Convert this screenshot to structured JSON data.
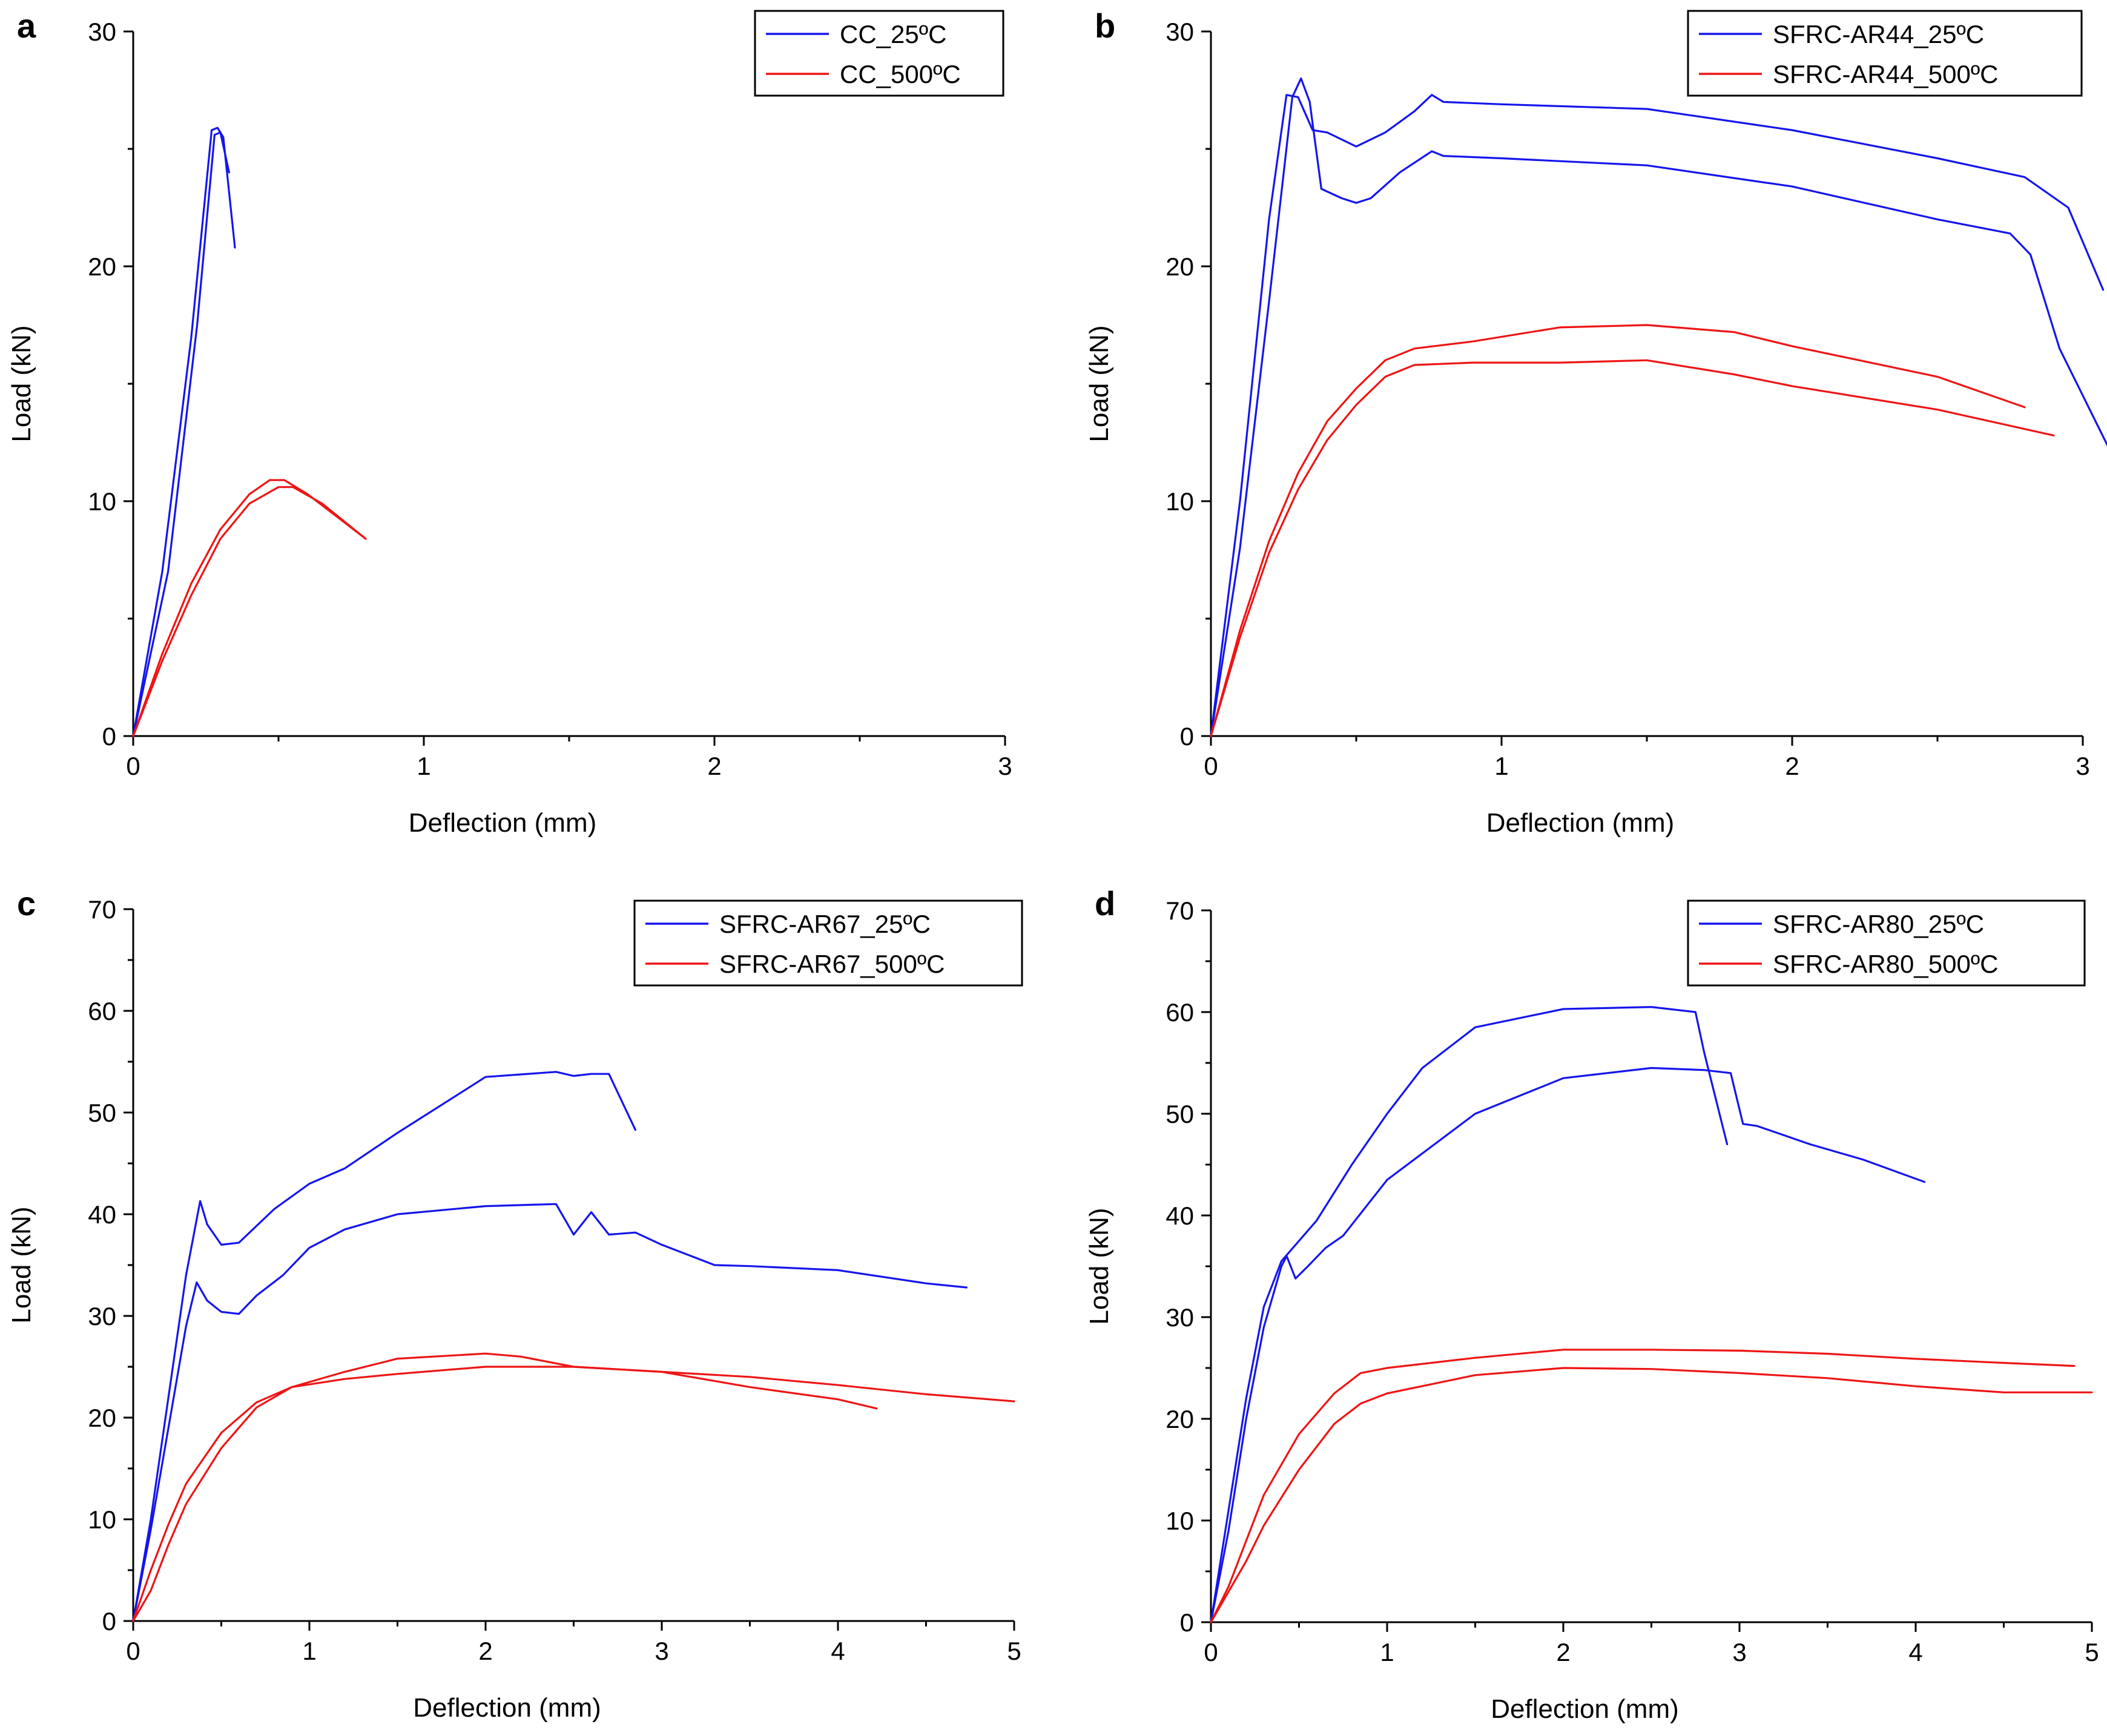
{
  "colors": {
    "blue": "#1515ee",
    "red": "#ee1515",
    "axis": "#000000"
  },
  "chart_data": [
    {
      "panel": "a",
      "type": "line",
      "xlabel": "Deflection (mm)",
      "ylabel": "Load (kN)",
      "xlim": [
        0,
        3
      ],
      "ylim": [
        0,
        30
      ],
      "xticks": [
        0,
        1,
        2,
        3
      ],
      "yticks": [
        0,
        10,
        20,
        30
      ],
      "legend": [
        {
          "label": "CC_25ºC",
          "color": "#1515ee"
        },
        {
          "label": "CC_500ºC",
          "color": "#ee1515"
        }
      ],
      "series": [
        {
          "name": "CC_25ºC specimen 1",
          "legend_index": 0,
          "x": [
            0,
            0.1,
            0.2,
            0.27,
            0.29,
            0.31,
            0.35
          ],
          "y": [
            0,
            7,
            17,
            25.8,
            25.9,
            25.5,
            20.8
          ]
        },
        {
          "name": "CC_25ºC specimen 2",
          "legend_index": 0,
          "x": [
            0,
            0.12,
            0.22,
            0.28,
            0.3,
            0.33
          ],
          "y": [
            0,
            7,
            17.5,
            25.6,
            25.7,
            24
          ]
        },
        {
          "name": "CC_500ºC specimen 1",
          "legend_index": 1,
          "x": [
            0,
            0.1,
            0.2,
            0.3,
            0.4,
            0.47,
            0.52,
            0.6,
            0.8
          ],
          "y": [
            0,
            3.5,
            6.5,
            8.8,
            10.3,
            10.9,
            10.9,
            10.3,
            8.4
          ]
        },
        {
          "name": "CC_500ºC specimen 2",
          "legend_index": 1,
          "x": [
            0,
            0.1,
            0.2,
            0.3,
            0.4,
            0.5,
            0.55,
            0.65,
            0.8
          ],
          "y": [
            0,
            3.2,
            6,
            8.4,
            9.9,
            10.6,
            10.6,
            9.9,
            8.4
          ]
        }
      ]
    },
    {
      "panel": "b",
      "type": "line",
      "xlabel": "Deflection (mm)",
      "ylabel": "Load (kN)",
      "xlim": [
        0,
        3
      ],
      "ylim": [
        0,
        30
      ],
      "xticks": [
        0,
        1,
        2,
        3
      ],
      "yticks": [
        0,
        10,
        20,
        30
      ],
      "legend": [
        {
          "label": "SFRC-AR44_25ºC",
          "color": "#1515ee"
        },
        {
          "label": "SFRC-AR44_500ºC",
          "color": "#ee1515"
        }
      ],
      "series": [
        {
          "name": "SFRC-AR44_25ºC specimen 1",
          "legend_index": 0,
          "x": [
            0,
            0.1,
            0.2,
            0.26,
            0.3,
            0.35,
            0.4,
            0.5,
            0.6,
            0.7,
            0.76,
            0.8,
            1.0,
            1.5,
            2.0,
            2.5,
            2.8,
            2.95,
            3.07
          ],
          "y": [
            0,
            10,
            22,
            27.3,
            27.2,
            25.8,
            25.7,
            25.1,
            25.7,
            26.6,
            27.3,
            27.0,
            26.9,
            26.7,
            25.8,
            24.6,
            23.8,
            22.5,
            19
          ]
        },
        {
          "name": "SFRC-AR44_25ºC specimen 2",
          "legend_index": 0,
          "x": [
            0,
            0.1,
            0.2,
            0.28,
            0.31,
            0.34,
            0.38,
            0.45,
            0.5,
            0.55,
            0.65,
            0.76,
            0.8,
            1.0,
            1.5,
            2.0,
            2.5,
            2.75,
            2.82,
            2.92,
            3.1
          ],
          "y": [
            0,
            8,
            18.5,
            27.2,
            28,
            27,
            23.3,
            22.9,
            22.7,
            22.9,
            24,
            24.9,
            24.7,
            24.6,
            24.3,
            23.4,
            22,
            21.4,
            20.5,
            16.5,
            12
          ]
        },
        {
          "name": "SFRC-AR44_500ºC specimen 1",
          "legend_index": 1,
          "x": [
            0,
            0.1,
            0.2,
            0.3,
            0.4,
            0.5,
            0.6,
            0.7,
            0.9,
            1.2,
            1.5,
            1.8,
            2.0,
            2.5,
            2.8
          ],
          "y": [
            0,
            4.5,
            8.3,
            11.2,
            13.4,
            14.8,
            16,
            16.5,
            16.8,
            17.4,
            17.5,
            17.2,
            16.6,
            15.3,
            14
          ]
        },
        {
          "name": "SFRC-AR44_500ºC specimen 2",
          "legend_index": 1,
          "x": [
            0,
            0.1,
            0.2,
            0.3,
            0.4,
            0.5,
            0.6,
            0.7,
            0.9,
            1.2,
            1.5,
            1.8,
            2.0,
            2.5,
            2.9
          ],
          "y": [
            0,
            4.2,
            7.8,
            10.5,
            12.6,
            14.1,
            15.3,
            15.8,
            15.9,
            15.9,
            16,
            15.4,
            14.9,
            13.9,
            12.8
          ]
        }
      ]
    },
    {
      "panel": "c",
      "type": "line",
      "xlabel": "Deflection (mm)",
      "ylabel": "Load (kN)",
      "xlim": [
        0,
        5
      ],
      "ylim": [
        0,
        70
      ],
      "xticks": [
        0,
        1,
        2,
        3,
        4,
        5
      ],
      "yticks": [
        0,
        10,
        20,
        30,
        40,
        50,
        60,
        70
      ],
      "legend": [
        {
          "label": "SFRC-AR67_25ºC",
          "color": "#1515ee"
        },
        {
          "label": "SFRC-AR67_500ºC",
          "color": "#ee1515"
        }
      ],
      "series": [
        {
          "name": "SFRC-AR67_25ºC specimen 1",
          "legend_index": 0,
          "x": [
            0,
            0.1,
            0.2,
            0.3,
            0.38,
            0.42,
            0.5,
            0.6,
            0.8,
            1.0,
            1.2,
            1.5,
            2.0,
            2.4,
            2.5,
            2.6,
            2.7,
            2.85
          ],
          "y": [
            0,
            10,
            22,
            34,
            41.3,
            39,
            37,
            37.2,
            40.5,
            43,
            44.5,
            48,
            53.5,
            54,
            53.6,
            53.8,
            53.8,
            48.3
          ]
        },
        {
          "name": "SFRC-AR67_25ºC specimen 2",
          "legend_index": 0,
          "x": [
            0,
            0.1,
            0.2,
            0.3,
            0.36,
            0.42,
            0.5,
            0.6,
            0.7,
            0.85,
            1.0,
            1.2,
            1.5,
            2.0,
            2.4,
            2.5,
            2.6,
            2.7,
            2.85,
            3.0,
            3.3,
            3.5,
            4.0,
            4.5,
            4.73
          ],
          "y": [
            0,
            9,
            19,
            29,
            33.3,
            31.5,
            30.4,
            30.2,
            32,
            34,
            36.7,
            38.5,
            40,
            40.8,
            41,
            38,
            40.2,
            38,
            38.2,
            37,
            35,
            34.9,
            34.5,
            33.2,
            32.8
          ]
        },
        {
          "name": "SFRC-AR67_500ºC specimen 1",
          "legend_index": 1,
          "x": [
            0,
            0.1,
            0.2,
            0.3,
            0.5,
            0.7,
            0.9,
            1.2,
            1.5,
            2.0,
            2.2,
            2.5,
            3.0,
            3.5,
            4.0,
            4.22
          ],
          "y": [
            0,
            3,
            7.5,
            11.5,
            17,
            21,
            23,
            24.5,
            25.8,
            26.3,
            26,
            25,
            24.5,
            23,
            21.8,
            20.9
          ]
        },
        {
          "name": "SFRC-AR67_500ºC specimen 2",
          "legend_index": 1,
          "x": [
            0,
            0.1,
            0.2,
            0.3,
            0.5,
            0.7,
            0.9,
            1.2,
            1.5,
            2.0,
            2.5,
            3.0,
            3.5,
            4.0,
            4.5,
            5.0
          ],
          "y": [
            0,
            5,
            9.5,
            13.5,
            18.5,
            21.5,
            23,
            23.8,
            24.3,
            25,
            25,
            24.5,
            24,
            23.2,
            22.3,
            21.6
          ]
        }
      ]
    },
    {
      "panel": "d",
      "type": "line",
      "xlabel": "Deflection (mm)",
      "ylabel": "Load (kN)",
      "xlim": [
        0,
        5
      ],
      "ylim": [
        0,
        70
      ],
      "xticks": [
        0,
        1,
        2,
        3,
        4,
        5
      ],
      "yticks": [
        0,
        10,
        20,
        30,
        40,
        50,
        60,
        70
      ],
      "legend": [
        {
          "label": "SFRC-AR80_25ºC",
          "color": "#1515ee"
        },
        {
          "label": "SFRC-AR80_500ºC",
          "color": "#ee1515"
        }
      ],
      "series": [
        {
          "name": "SFRC-AR80_25ºC specimen 1",
          "legend_index": 0,
          "x": [
            0,
            0.1,
            0.2,
            0.3,
            0.4,
            0.5,
            0.6,
            0.8,
            1.0,
            1.2,
            1.5,
            2.0,
            2.5,
            2.75,
            2.8,
            2.93
          ],
          "y": [
            0,
            11,
            22,
            31,
            35.5,
            37.5,
            39.5,
            45,
            50,
            54.5,
            58.5,
            60.3,
            60.5,
            60,
            56,
            47
          ]
        },
        {
          "name": "SFRC-AR80_25ºC specimen 2",
          "legend_index": 0,
          "x": [
            0,
            0.1,
            0.2,
            0.3,
            0.4,
            0.43,
            0.48,
            0.55,
            0.65,
            0.75,
            1.0,
            1.5,
            2.0,
            2.5,
            2.8,
            2.95,
            3.02,
            3.1,
            3.4,
            3.7,
            4.05
          ],
          "y": [
            0,
            9,
            20,
            29,
            35,
            36,
            33.8,
            35,
            36.8,
            38,
            43.5,
            50,
            53.5,
            54.5,
            54.3,
            54,
            49,
            48.8,
            47,
            45.5,
            43.3
          ]
        },
        {
          "name": "SFRC-AR80_500ºC specimen 1",
          "legend_index": 1,
          "x": [
            0,
            0.1,
            0.2,
            0.3,
            0.5,
            0.7,
            0.85,
            1.0,
            1.5,
            2.0,
            2.5,
            3.0,
            3.5,
            4.0,
            4.5,
            4.9
          ],
          "y": [
            0,
            3.5,
            8,
            12.5,
            18.5,
            22.5,
            24.5,
            25,
            26,
            26.8,
            26.8,
            26.7,
            26.4,
            25.9,
            25.5,
            25.2
          ]
        },
        {
          "name": "SFRC-AR80_500ºC specimen 2",
          "legend_index": 1,
          "x": [
            0,
            0.1,
            0.2,
            0.3,
            0.5,
            0.7,
            0.85,
            1.0,
            1.5,
            2.0,
            2.5,
            3.0,
            3.5,
            4.0,
            4.5,
            5.0
          ],
          "y": [
            0,
            3,
            6,
            9.5,
            15,
            19.5,
            21.5,
            22.5,
            24.3,
            25,
            24.9,
            24.5,
            24,
            23.2,
            22.6,
            22.6
          ]
        }
      ]
    }
  ]
}
